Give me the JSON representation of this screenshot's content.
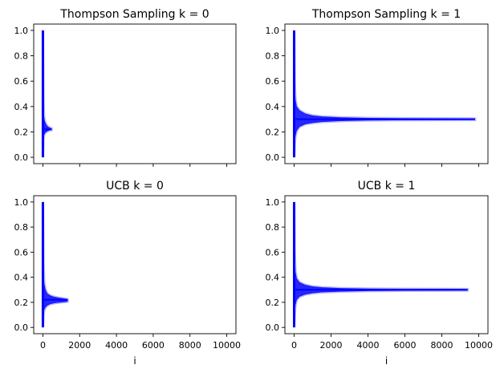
{
  "chart_data": [
    {
      "type": "line",
      "title": "Thompson Sampling k = 0",
      "xlabel": "",
      "ylabel": "",
      "xlim": [
        -500,
        10500
      ],
      "ylim": [
        -0.05,
        1.05
      ],
      "xticks": [
        0,
        2000,
        4000,
        6000,
        8000,
        10000
      ],
      "x_tick_labels_shown": false,
      "yticks": [
        "0.0",
        "0.2",
        "0.4",
        "0.6",
        "0.8",
        "1.0"
      ],
      "grid": false,
      "color": "#0000ff",
      "band": {
        "x": [
          0,
          30,
          60,
          100,
          150,
          200,
          260,
          330,
          400,
          480
        ],
        "lower": [
          0.0,
          0.14,
          0.17,
          0.185,
          0.195,
          0.2,
          0.205,
          0.21,
          0.213,
          0.215
        ],
        "upper": [
          1.0,
          0.45,
          0.33,
          0.29,
          0.27,
          0.255,
          0.245,
          0.238,
          0.232,
          0.228
        ],
        "center": [
          0.22,
          0.22,
          0.22,
          0.22,
          0.22,
          0.22,
          0.22,
          0.22,
          0.22,
          0.22
        ]
      }
    },
    {
      "type": "line",
      "title": "Thompson Sampling k = 1",
      "xlabel": "",
      "ylabel": "",
      "xlim": [
        -500,
        10500
      ],
      "ylim": [
        -0.05,
        1.05
      ],
      "xticks": [
        0,
        2000,
        4000,
        6000,
        8000,
        10000
      ],
      "x_tick_labels_shown": false,
      "yticks": [
        "0.0",
        "0.2",
        "0.4",
        "0.6",
        "0.8",
        "1.0"
      ],
      "grid": false,
      "color": "#0000ff",
      "band": {
        "x": [
          0,
          30,
          80,
          150,
          300,
          600,
          1000,
          1500,
          2500,
          4000,
          6000,
          8000,
          9800
        ],
        "lower": [
          0.0,
          0.1,
          0.17,
          0.21,
          0.24,
          0.26,
          0.27,
          0.278,
          0.285,
          0.29,
          0.292,
          0.293,
          0.294
        ],
        "upper": [
          1.0,
          0.6,
          0.45,
          0.4,
          0.37,
          0.345,
          0.33,
          0.322,
          0.315,
          0.31,
          0.308,
          0.307,
          0.306
        ],
        "center": [
          0.3,
          0.3,
          0.3,
          0.3,
          0.3,
          0.3,
          0.3,
          0.3,
          0.3,
          0.3,
          0.3,
          0.3,
          0.3
        ]
      }
    },
    {
      "type": "line",
      "title": "UCB k = 0",
      "xlabel": "i",
      "ylabel": "",
      "xlim": [
        -500,
        10500
      ],
      "ylim": [
        -0.05,
        1.05
      ],
      "xticks": [
        0,
        2000,
        4000,
        6000,
        8000,
        10000
      ],
      "xtick_labels": [
        "0",
        "2000",
        "4000",
        "6000",
        "8000",
        "10000"
      ],
      "x_tick_labels_shown": true,
      "yticks": [
        "0.0",
        "0.2",
        "0.4",
        "0.6",
        "0.8",
        "1.0"
      ],
      "grid": false,
      "color": "#0000ff",
      "band": {
        "x": [
          0,
          30,
          80,
          150,
          250,
          400,
          600,
          850,
          1100,
          1350
        ],
        "lower": [
          0.0,
          0.1,
          0.14,
          0.16,
          0.175,
          0.185,
          0.192,
          0.197,
          0.2,
          0.205
        ],
        "upper": [
          1.0,
          0.5,
          0.35,
          0.3,
          0.27,
          0.255,
          0.245,
          0.238,
          0.232,
          0.226
        ],
        "center": [
          0.22,
          0.22,
          0.22,
          0.22,
          0.22,
          0.22,
          0.22,
          0.22,
          0.22,
          0.22
        ]
      }
    },
    {
      "type": "line",
      "title": "UCB k = 1",
      "xlabel": "i",
      "ylabel": "",
      "xlim": [
        -500,
        10500
      ],
      "ylim": [
        -0.05,
        1.05
      ],
      "xticks": [
        0,
        2000,
        4000,
        6000,
        8000,
        10000
      ],
      "xtick_labels": [
        "0",
        "2000",
        "4000",
        "6000",
        "8000",
        "10000"
      ],
      "x_tick_labels_shown": true,
      "yticks": [
        "0.0",
        "0.2",
        "0.4",
        "0.6",
        "0.8",
        "1.0"
      ],
      "grid": false,
      "color": "#0000ff",
      "band": {
        "x": [
          0,
          30,
          80,
          150,
          300,
          600,
          1000,
          1500,
          2500,
          4000,
          6000,
          8000,
          9400
        ],
        "lower": [
          0.0,
          0.1,
          0.18,
          0.22,
          0.245,
          0.262,
          0.272,
          0.279,
          0.285,
          0.29,
          0.292,
          0.293,
          0.294
        ],
        "upper": [
          1.0,
          0.6,
          0.44,
          0.39,
          0.36,
          0.34,
          0.327,
          0.32,
          0.314,
          0.31,
          0.308,
          0.307,
          0.306
        ],
        "center": [
          0.3,
          0.3,
          0.3,
          0.3,
          0.3,
          0.3,
          0.3,
          0.3,
          0.3,
          0.3,
          0.3,
          0.3,
          0.3
        ]
      }
    }
  ]
}
